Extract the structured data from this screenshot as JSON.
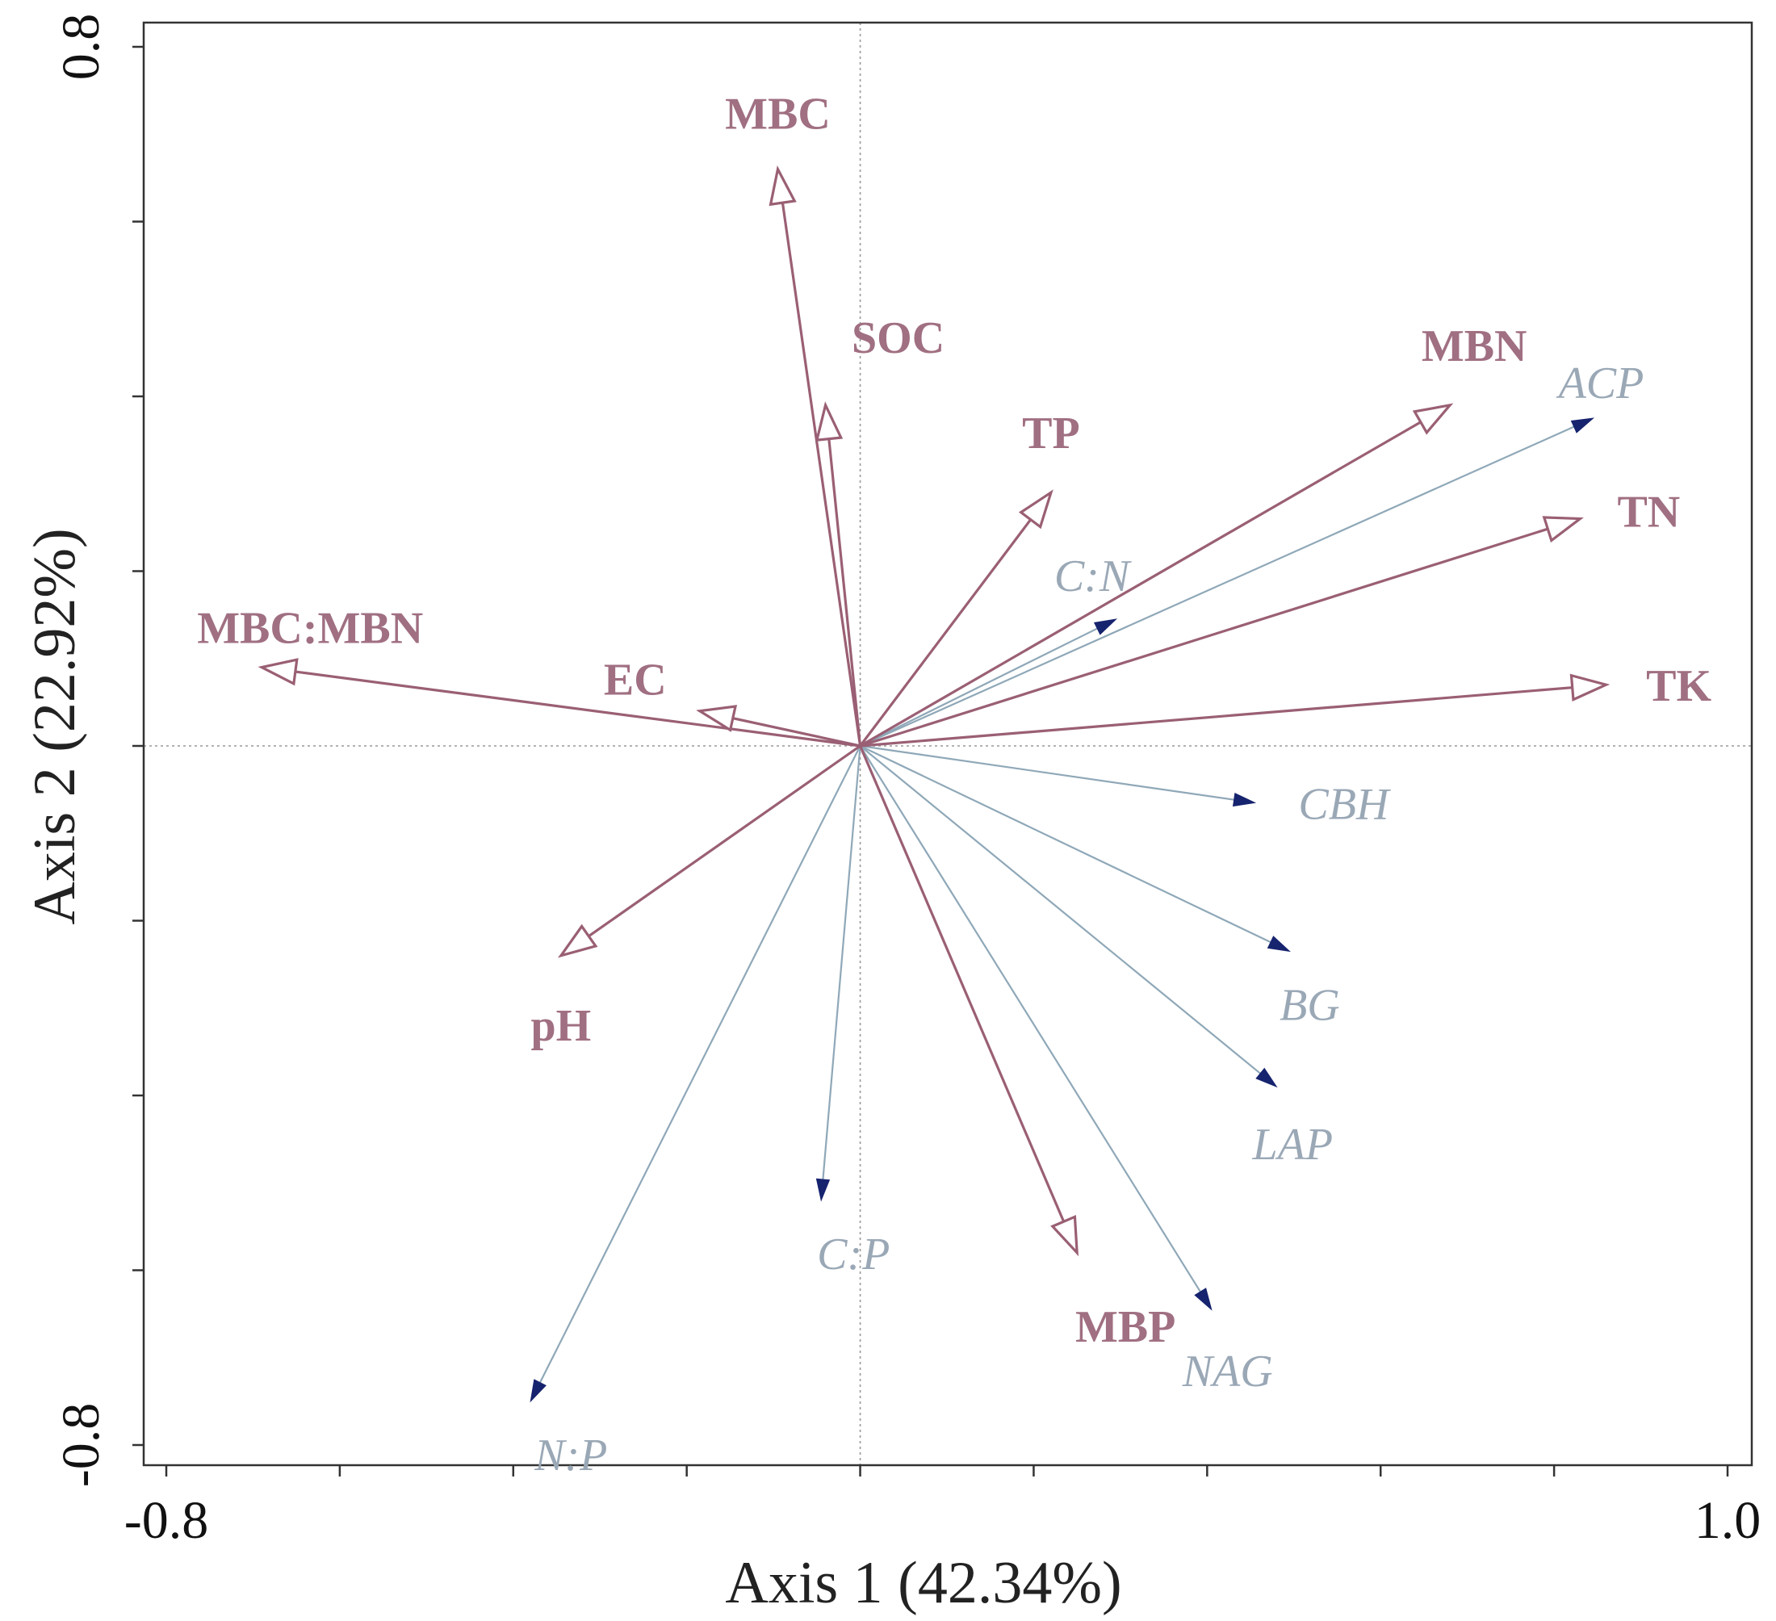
{
  "chart_data": {
    "type": "scatter",
    "subtype": "biplot",
    "xlabel": "Axis 1 (42.34%)",
    "ylabel": "Axis 2 (22.92%)",
    "xlim": [
      -0.8,
      1.0
    ],
    "ylim": [
      -0.8,
      0.8
    ],
    "x_tick_labels": [
      {
        "value": -0.8,
        "label": "-0.8"
      },
      {
        "value": 1.0,
        "label": "1.0"
      }
    ],
    "y_tick_labels": [
      {
        "value": 0.8,
        "label": "0.8"
      },
      {
        "value": -0.8,
        "label": "-0.8"
      }
    ],
    "minor_ticks_x": [
      -0.8,
      -0.6,
      -0.4,
      -0.2,
      0.0,
      0.2,
      0.4,
      0.6,
      0.8,
      1.0
    ],
    "minor_ticks_y": [
      0.8,
      0.6,
      0.4,
      0.2,
      0.0,
      -0.2,
      -0.4,
      -0.6,
      -0.8
    ],
    "colors": {
      "environmental": "#9a5f74",
      "environmental_label": "#a06f82",
      "response_line": "#8fa8b8",
      "response_head": "#16236e",
      "response_label": "#9aa8b6",
      "frame": "#333333",
      "zero_line": "#999999"
    },
    "series": [
      {
        "name": "environmental",
        "vectors": [
          {
            "label": "MBC",
            "x": -0.095,
            "y": 0.66
          },
          {
            "label": "SOC",
            "x": -0.04,
            "y": 0.39
          },
          {
            "label": "TP",
            "x": 0.22,
            "y": 0.29
          },
          {
            "label": "MBN",
            "x": 0.68,
            "y": 0.39
          },
          {
            "label": "TN",
            "x": 0.83,
            "y": 0.26
          },
          {
            "label": "TK",
            "x": 0.86,
            "y": 0.07
          },
          {
            "label": "MBC:MBN",
            "x": -0.69,
            "y": 0.09
          },
          {
            "label": "EC",
            "x": -0.185,
            "y": 0.04
          },
          {
            "label": "pH",
            "x": -0.345,
            "y": -0.24
          },
          {
            "label": "MBP",
            "x": 0.25,
            "y": -0.58
          }
        ]
      },
      {
        "name": "response",
        "vectors": [
          {
            "label": "ACP",
            "x": 0.845,
            "y": 0.375
          },
          {
            "label": "C:N",
            "x": 0.295,
            "y": 0.145
          },
          {
            "label": "CBH",
            "x": 0.455,
            "y": -0.065
          },
          {
            "label": "BG",
            "x": 0.495,
            "y": -0.235
          },
          {
            "label": "LAP",
            "x": 0.48,
            "y": -0.39
          },
          {
            "label": "NAG",
            "x": 0.405,
            "y": -0.645
          },
          {
            "label": "C:P",
            "x": -0.045,
            "y": -0.52
          },
          {
            "label": "N:P",
            "x": -0.38,
            "y": -0.75
          }
        ]
      }
    ]
  }
}
